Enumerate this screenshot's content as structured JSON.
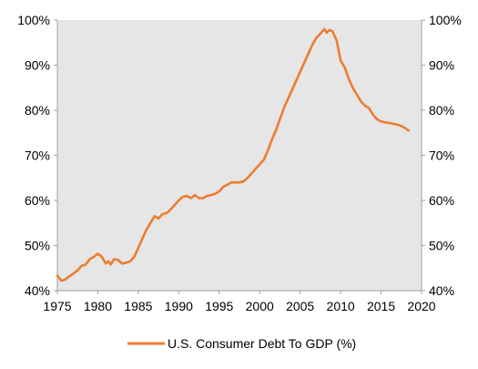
{
  "chart_data": {
    "type": "line",
    "title": "",
    "xlabel": "",
    "ylabel": "",
    "xlim": [
      1975,
      2020
    ],
    "ylim": [
      40,
      100
    ],
    "x_ticks": [
      "1975",
      "1980",
      "1985",
      "1990",
      "1995",
      "2000",
      "2005",
      "2010",
      "2015",
      "2020"
    ],
    "y_ticks_left": [
      "40%",
      "50%",
      "60%",
      "70%",
      "80%",
      "90%",
      "100%"
    ],
    "y_ticks_right": [
      "40%",
      "50%",
      "60%",
      "70%",
      "80%",
      "90%",
      "100%"
    ],
    "grid": false,
    "plot_background": "#e6e6e6",
    "legend_position": "bottom-center",
    "series": [
      {
        "name": "U.S. Consumer Debt To GDP (%)",
        "color": "#ed7d31",
        "x": [
          1975.0,
          1975.5,
          1976.0,
          1976.5,
          1977.0,
          1977.5,
          1978.0,
          1978.5,
          1979.0,
          1979.5,
          1980.0,
          1980.5,
          1981.0,
          1981.3,
          1981.6,
          1982.0,
          1982.5,
          1983.0,
          1983.5,
          1984.0,
          1984.5,
          1985.0,
          1985.5,
          1986.0,
          1986.5,
          1987.0,
          1987.5,
          1988.0,
          1988.5,
          1989.0,
          1989.5,
          1990.0,
          1990.5,
          1991.0,
          1991.5,
          1992.0,
          1992.5,
          1993.0,
          1993.5,
          1994.0,
          1994.5,
          1995.0,
          1995.5,
          1996.0,
          1996.5,
          1997.0,
          1997.5,
          1998.0,
          1998.5,
          1999.0,
          1999.5,
          2000.0,
          2000.5,
          2001.0,
          2001.5,
          2002.0,
          2002.5,
          2003.0,
          2003.5,
          2004.0,
          2004.5,
          2005.0,
          2005.5,
          2006.0,
          2006.5,
          2007.0,
          2007.5,
          2008.0,
          2008.3,
          2008.6,
          2009.0,
          2009.5,
          2010.0,
          2010.5,
          2011.0,
          2011.5,
          2012.0,
          2012.5,
          2013.0,
          2013.5,
          2014.0,
          2014.5,
          2015.0,
          2015.5,
          2016.0,
          2016.5,
          2017.0,
          2017.5,
          2018.0,
          2018.4
        ],
        "values": [
          43.3,
          42.2,
          42.5,
          43.2,
          43.8,
          44.5,
          45.5,
          45.8,
          47.0,
          47.5,
          48.2,
          47.5,
          46.0,
          46.5,
          45.8,
          47.0,
          46.8,
          46.0,
          46.2,
          46.5,
          47.5,
          49.5,
          51.5,
          53.5,
          55.0,
          56.5,
          56.0,
          57.0,
          57.2,
          58.0,
          59.0,
          60.0,
          60.8,
          61.0,
          60.5,
          61.2,
          60.5,
          60.5,
          61.0,
          61.2,
          61.5,
          62.0,
          63.0,
          63.5,
          64.0,
          64.0,
          64.0,
          64.2,
          65.0,
          66.0,
          67.0,
          68.0,
          69.0,
          71.0,
          73.5,
          75.5,
          78.0,
          80.5,
          82.5,
          84.5,
          86.5,
          88.5,
          90.5,
          92.5,
          94.5,
          96.0,
          97.0,
          98.0,
          97.2,
          97.8,
          97.5,
          95.5,
          91.0,
          89.5,
          87.0,
          85.0,
          83.5,
          82.0,
          81.0,
          80.5,
          79.0,
          78.0,
          77.5,
          77.3,
          77.2,
          77.0,
          76.8,
          76.5,
          76.0,
          75.5
        ]
      }
    ]
  }
}
